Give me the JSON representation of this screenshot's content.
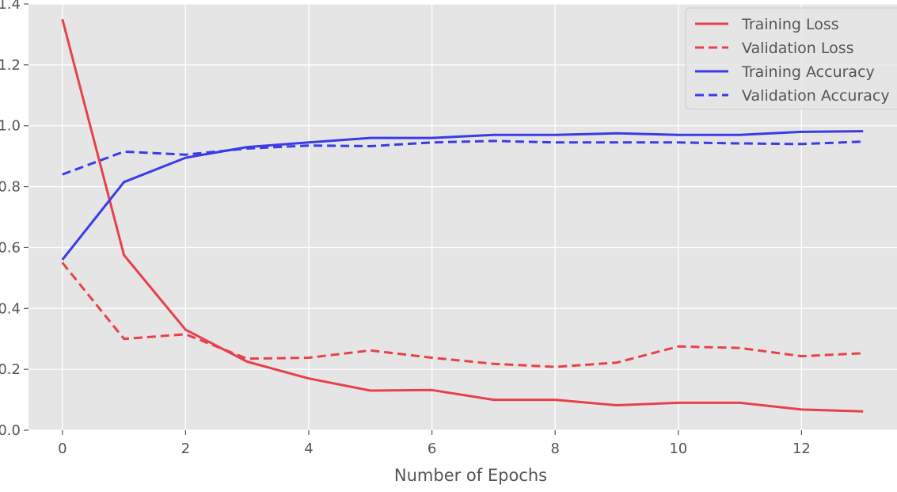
{
  "chart_data": {
    "type": "line",
    "title": "",
    "xlabel": "Number of Epochs",
    "ylabel": "",
    "x": [
      0,
      1,
      2,
      3,
      4,
      5,
      6,
      7,
      8,
      9,
      10,
      11,
      12,
      13
    ],
    "xlim": [
      -0.55,
      13.55
    ],
    "ylim": [
      0.0,
      1.4
    ],
    "xticks": [
      0,
      2,
      4,
      6,
      8,
      10,
      12
    ],
    "xtick_labels": [
      "0",
      "2",
      "4",
      "6",
      "8",
      "10",
      "12"
    ],
    "yticks": [
      0.0,
      0.2,
      0.4,
      0.6,
      0.8,
      1.0,
      1.2,
      1.4
    ],
    "ytick_labels": [
      "0.0",
      "0.2",
      "0.4",
      "0.6",
      "0.8",
      "1.0",
      "1.2",
      "1.4"
    ],
    "grid": true,
    "style": "ggplot",
    "legend_position": "top-right",
    "series": [
      {
        "name": "Training Loss",
        "color": "#e8414a",
        "dash": "solid",
        "values": [
          1.35,
          0.575,
          0.33,
          0.225,
          0.17,
          0.13,
          0.132,
          0.1,
          0.1,
          0.082,
          0.09,
          0.09,
          0.068,
          0.062
        ]
      },
      {
        "name": "Validation Loss",
        "color": "#e8414a",
        "dash": "dashed",
        "values": [
          0.55,
          0.3,
          0.315,
          0.235,
          0.238,
          0.262,
          0.238,
          0.218,
          0.208,
          0.222,
          0.275,
          0.27,
          0.243,
          0.253
        ]
      },
      {
        "name": "Training Accuracy",
        "color": "#3b3ce8",
        "dash": "solid",
        "values": [
          0.56,
          0.815,
          0.895,
          0.93,
          0.945,
          0.96,
          0.96,
          0.97,
          0.97,
          0.975,
          0.97,
          0.97,
          0.98,
          0.982
        ]
      },
      {
        "name": "Validation Accuracy",
        "color": "#3b3ce8",
        "dash": "dashed",
        "values": [
          0.84,
          0.915,
          0.905,
          0.925,
          0.935,
          0.933,
          0.945,
          0.95,
          0.945,
          0.945,
          0.945,
          0.942,
          0.94,
          0.948
        ]
      }
    ]
  }
}
